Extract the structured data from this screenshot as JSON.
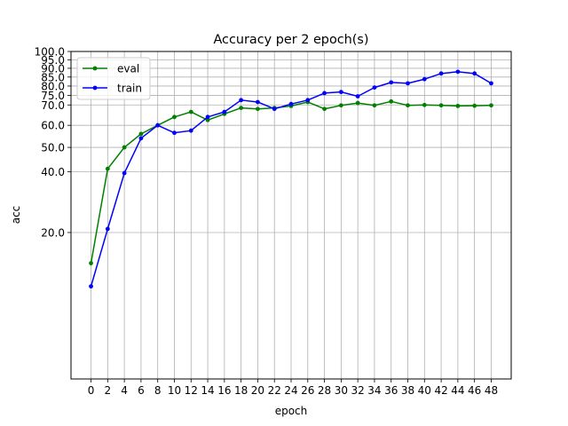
{
  "chart_data": {
    "type": "line",
    "title": "Accuracy per 2 epoch(s)",
    "xlabel": "epoch",
    "ylabel": "acc",
    "xlim": [
      -2.4,
      50.4
    ],
    "ylim": [
      0,
      100
    ],
    "x_ticks": [
      0,
      2,
      4,
      6,
      8,
      10,
      12,
      14,
      16,
      18,
      20,
      22,
      24,
      26,
      28,
      30,
      32,
      34,
      36,
      38,
      40,
      42,
      44,
      46,
      48
    ],
    "y_ticks": [
      20,
      40,
      50,
      60,
      70,
      75,
      80,
      85,
      90,
      95,
      100
    ],
    "y_tick_labels": [
      "20.0",
      "40.0",
      "50.0",
      "60.0",
      "70.0",
      "75.0",
      "80.0",
      "85.0",
      "90.0",
      "95.0",
      "100.0"
    ],
    "grid": true,
    "legend_position": "top-left",
    "series": [
      {
        "name": "eval",
        "color": "#008000",
        "x": [
          0,
          2,
          4,
          6,
          8,
          10,
          12,
          14,
          16,
          18,
          20,
          22,
          24,
          26,
          28,
          30,
          32,
          34,
          36,
          38,
          40,
          42,
          44,
          46,
          48
        ],
        "y": [
          12.5,
          41.2,
          50.0,
          56.0,
          60.0,
          64.0,
          66.5,
          62.5,
          65.5,
          68.5,
          68.0,
          68.5,
          69.5,
          71.5,
          68.0,
          69.8,
          71.0,
          69.8,
          71.8,
          69.8,
          70.0,
          69.8,
          69.5,
          69.6,
          69.8
        ]
      },
      {
        "name": "train",
        "color": "#0000ff",
        "x": [
          0,
          2,
          4,
          6,
          8,
          10,
          12,
          14,
          16,
          18,
          20,
          22,
          24,
          26,
          28,
          30,
          32,
          34,
          36,
          38,
          40,
          42,
          44,
          46,
          48
        ],
        "y": [
          8.0,
          21.0,
          39.5,
          54.0,
          60.0,
          56.5,
          57.5,
          64.0,
          66.5,
          72.5,
          71.5,
          68.0,
          70.5,
          72.5,
          76.2,
          76.8,
          74.5,
          79.2,
          82.0,
          81.5,
          83.8,
          87.0,
          88.0,
          87.0,
          81.5
        ]
      }
    ]
  }
}
